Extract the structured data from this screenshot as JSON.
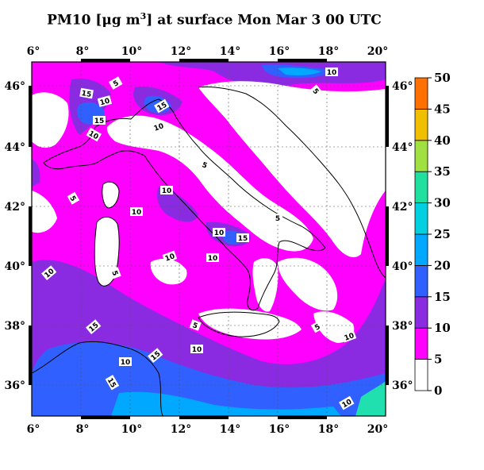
{
  "title": {
    "prefix": "PM10 [",
    "unit_main": "μg m",
    "unit_sup": "3",
    "suffix": "] at surface Mon Mar  3 00 UTC"
  },
  "axes": {
    "lon_ticks": [
      "6°",
      "8°",
      "10°",
      "12°",
      "14°",
      "16°",
      "18°",
      "20°"
    ],
    "lat_ticks": [
      "46°",
      "44°",
      "42°",
      "40°",
      "38°",
      "36°"
    ]
  },
  "colorbar": {
    "levels": [
      "0",
      "5",
      "10",
      "15",
      "20",
      "25",
      "30",
      "35",
      "40",
      "45",
      "50"
    ],
    "colors": [
      "#ffffff",
      "#ff00ff",
      "#8a2be2",
      "#3060ff",
      "#00a8ff",
      "#00d0e0",
      "#20e0a0",
      "#a0e040",
      "#f0c000",
      "#ff7000",
      "#a02000"
    ]
  },
  "palette": {
    "land_low": "#ffffff",
    "pm_5_10": "#ff00ff",
    "pm_10_15": "#8a2be2",
    "pm_15_20": "#3060ff",
    "pm_20_25": "#00a8ff",
    "pm_25_30": "#20e0b0",
    "frame": "#000000"
  },
  "contour_labels": [
    "5",
    "10",
    "15",
    "10",
    "15",
    "15",
    "5",
    "10",
    "5",
    "5",
    "10",
    "10",
    "10",
    "15",
    "5",
    "10",
    "5",
    "15",
    "15",
    "10",
    "10",
    "5",
    "10",
    "5",
    "10",
    "15",
    "10",
    "10",
    "10"
  ]
}
